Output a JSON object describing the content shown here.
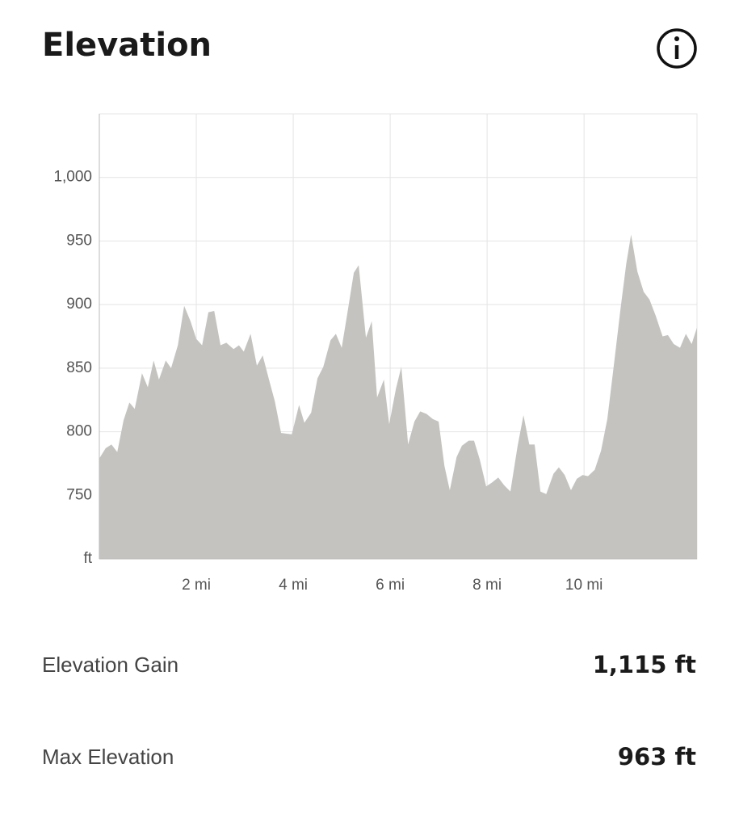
{
  "header": {
    "title": "Elevation"
  },
  "chart_data": {
    "type": "area",
    "x": [
      0,
      0.13,
      0.25,
      0.37,
      0.5,
      0.62,
      0.73,
      0.88,
      1.0,
      1.12,
      1.23,
      1.37,
      1.48,
      1.62,
      1.75,
      1.88,
      2.0,
      2.12,
      2.25,
      2.37,
      2.5,
      2.62,
      2.77,
      2.88,
      2.98,
      3.12,
      3.25,
      3.37,
      3.5,
      3.62,
      3.75,
      3.97,
      4.12,
      4.23,
      4.37,
      4.5,
      4.62,
      4.77,
      4.88,
      5.0,
      5.12,
      5.25,
      5.35,
      5.5,
      5.62,
      5.73,
      5.87,
      5.98,
      6.12,
      6.23,
      6.37,
      6.5,
      6.62,
      6.75,
      6.88,
      7.0,
      7.12,
      7.23,
      7.37,
      7.48,
      7.62,
      7.73,
      7.85,
      7.98,
      8.1,
      8.23,
      8.35,
      8.48,
      8.63,
      8.75,
      8.87,
      8.98,
      9.1,
      9.22,
      9.37,
      9.48,
      9.6,
      9.73,
      9.85,
      9.97,
      10.08,
      10.22,
      10.35,
      10.48,
      10.62,
      10.75,
      10.87,
      10.97,
      11.1,
      11.23,
      11.35,
      11.48,
      11.62,
      11.73,
      11.85,
      11.98,
      12.1,
      12.22,
      12.33
    ],
    "values": [
      779,
      787,
      790,
      784,
      809,
      823,
      818,
      846,
      835,
      856,
      841,
      856,
      850,
      868,
      899,
      887,
      873,
      868,
      894,
      895,
      868,
      870,
      865,
      868,
      863,
      877,
      852,
      860,
      841,
      824,
      799,
      798,
      821,
      807,
      815,
      842,
      851,
      872,
      877,
      866,
      894,
      925,
      931,
      874,
      887,
      827,
      841,
      806,
      834,
      851,
      790,
      808,
      816,
      814,
      810,
      808,
      773,
      754,
      780,
      789,
      793,
      793,
      778,
      757,
      760,
      764,
      758,
      753,
      789,
      813,
      790,
      790,
      753,
      751,
      767,
      772,
      766,
      754,
      763,
      766,
      765,
      770,
      785,
      810,
      854,
      896,
      932,
      955,
      926,
      910,
      904,
      891,
      875,
      876,
      869,
      866,
      877,
      869,
      882
    ],
    "color": "#c4c3bf",
    "xlim": [
      0,
      12.33
    ],
    "ylim": [
      700,
      1050
    ],
    "xticks": [
      {
        "value": 2,
        "label": "2 mi"
      },
      {
        "value": 4,
        "label": "4 mi"
      },
      {
        "value": 6,
        "label": "6 mi"
      },
      {
        "value": 8,
        "label": "8 mi"
      },
      {
        "value": 10,
        "label": "10 mi"
      }
    ],
    "yticks": [
      {
        "value": 700,
        "label": "ft"
      },
      750,
      800,
      850,
      900,
      950,
      {
        "value": 1000,
        "label": "1,000"
      }
    ],
    "grid": true
  },
  "stats": [
    {
      "label": "Elevation Gain",
      "value": "1,115 ft"
    },
    {
      "label": "Max Elevation",
      "value": "963 ft"
    }
  ]
}
